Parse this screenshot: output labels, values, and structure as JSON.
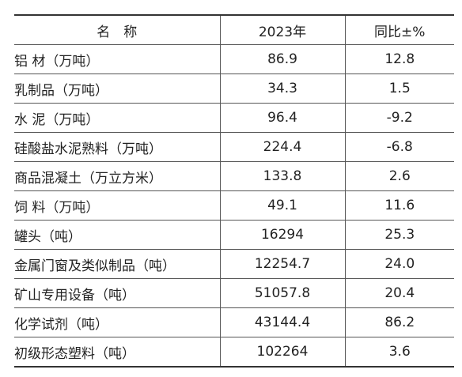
{
  "table": {
    "headers": [
      "名　称",
      "2023年",
      "同比±%"
    ],
    "rows": [
      {
        "name": "铝 材（万吨）",
        "value": "86.9",
        "yoy": "12.8"
      },
      {
        "name": "乳制品（万吨）",
        "value": "34.3",
        "yoy": "1.5"
      },
      {
        "name": "水 泥（万吨）",
        "value": "96.4",
        "yoy": "-9.2"
      },
      {
        "name": "硅酸盐水泥熟料（万吨）",
        "value": "224.4",
        "yoy": "-6.8"
      },
      {
        "name": "商品混凝土（万立方米）",
        "value": "133.8",
        "yoy": "2.6"
      },
      {
        "name": "饲 料（万吨）",
        "value": "49.1",
        "yoy": "11.6"
      },
      {
        "name": "罐头（吨）",
        "value": "16294",
        "yoy": "25.3"
      },
      {
        "name": "金属门窗及类似制品（吨）",
        "value": "12254.7",
        "yoy": "24.0"
      },
      {
        "name": "矿山专用设备（吨）",
        "value": "51057.8",
        "yoy": "20.4"
      },
      {
        "name": "化学试剂（吨）",
        "value": "43144.4",
        "yoy": "86.2"
      },
      {
        "name": "初级形态塑料（吨）",
        "value": "102264",
        "yoy": "3.6"
      }
    ]
  }
}
